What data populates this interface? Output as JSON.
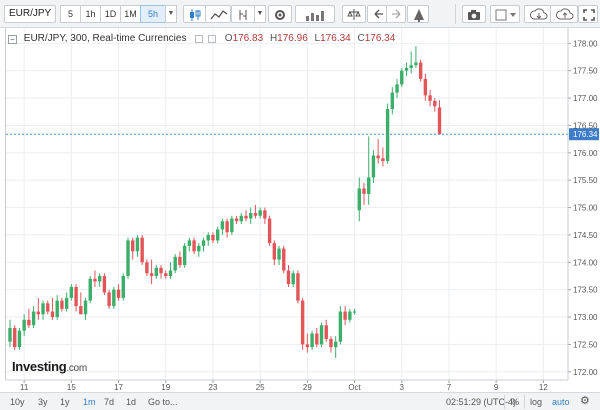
{
  "toolbar": {
    "symbol": "EUR/JPY",
    "intervals": [
      "5",
      "1h",
      "1D",
      "1M",
      "5h"
    ],
    "active_interval": "5h",
    "icons": [
      "candles-icon",
      "indicators-icon",
      "fx-icon",
      "settings-icon",
      "compare-icon",
      "balance-icon",
      "undo-icon",
      "redo-icon",
      "alert-icon",
      "camera-icon",
      "color-icon",
      "cloud-download-icon",
      "cloud-upload-icon",
      "fullscreen-icon"
    ]
  },
  "legend": {
    "title": "EUR/JPY, 300, Real-time Currencies",
    "o_label": "O",
    "o_value": "176.83",
    "h_label": "H",
    "h_value": "176.96",
    "l_label": "L",
    "l_value": "176.34",
    "c_label": "C",
    "c_value": "176.34"
  },
  "brand": {
    "name": "Investing",
    "suffix": ".com"
  },
  "price_tag": "176.34",
  "bottombar": {
    "ranges": [
      "10y",
      "3y",
      "1y",
      "1m",
      "7d",
      "1d",
      "Go to..."
    ],
    "active_range": "1m",
    "time": "02:51:29 (UTC-4)",
    "pct": "%",
    "log": "log",
    "auto": "auto"
  },
  "colors": {
    "up": "#3bae6a",
    "down": "#e2565a",
    "grid": "#eceef1",
    "price_line": "#4a90d9"
  },
  "chart_data": {
    "type": "candlestick",
    "title": "EUR/JPY, 300, Real-time Currencies",
    "ylim": [
      171.85,
      178.28
    ],
    "y_ticks": [
      172.0,
      172.5,
      173.0,
      173.5,
      174.0,
      174.5,
      175.0,
      175.5,
      176.0,
      176.5,
      177.0,
      177.5,
      178.0
    ],
    "y_tick_labels": [
      "172.00",
      "172.50",
      "173.00",
      "173.50",
      "174.00",
      "174.50",
      "175.00",
      "175.50",
      "176.00",
      "176.50",
      "177.00",
      "177.50",
      "178.00"
    ],
    "x_ticks": [
      {
        "label": "11",
        "index": 3
      },
      {
        "label": "15",
        "index": 13
      },
      {
        "label": "17",
        "index": 23
      },
      {
        "label": "19",
        "index": 33
      },
      {
        "label": "23",
        "index": 43
      },
      {
        "label": "25",
        "index": 53
      },
      {
        "label": "29",
        "index": 63
      },
      {
        "label": "Oct",
        "index": 73
      },
      {
        "label": "3",
        "index": 83
      },
      {
        "label": "7",
        "index": 93
      },
      {
        "label": "9",
        "index": 103
      },
      {
        "label": "12",
        "index": 113
      }
    ],
    "last_price": 176.34,
    "candles": [
      {
        "o": 172.55,
        "h": 172.95,
        "l": 172.45,
        "c": 172.8
      },
      {
        "o": 172.8,
        "h": 172.85,
        "l": 172.4,
        "c": 172.45
      },
      {
        "o": 172.45,
        "h": 172.8,
        "l": 172.4,
        "c": 172.75
      },
      {
        "o": 172.75,
        "h": 173.05,
        "l": 172.65,
        "c": 172.95
      },
      {
        "o": 172.95,
        "h": 173.15,
        "l": 172.8,
        "c": 172.85
      },
      {
        "o": 172.85,
        "h": 173.2,
        "l": 172.8,
        "c": 173.1
      },
      {
        "o": 173.1,
        "h": 173.35,
        "l": 172.95,
        "c": 173.05
      },
      {
        "o": 173.05,
        "h": 173.3,
        "l": 172.95,
        "c": 173.25
      },
      {
        "o": 173.25,
        "h": 173.3,
        "l": 173.05,
        "c": 173.1
      },
      {
        "o": 173.1,
        "h": 173.35,
        "l": 172.95,
        "c": 173.0
      },
      {
        "o": 173.0,
        "h": 173.4,
        "l": 172.95,
        "c": 173.3
      },
      {
        "o": 173.3,
        "h": 173.35,
        "l": 173.1,
        "c": 173.15
      },
      {
        "o": 173.15,
        "h": 173.45,
        "l": 173.1,
        "c": 173.35
      },
      {
        "o": 173.35,
        "h": 173.6,
        "l": 173.3,
        "c": 173.55
      },
      {
        "o": 173.55,
        "h": 173.6,
        "l": 173.1,
        "c": 173.2
      },
      {
        "o": 173.2,
        "h": 173.45,
        "l": 173.05,
        "c": 173.05
      },
      {
        "o": 173.05,
        "h": 173.35,
        "l": 172.95,
        "c": 173.3
      },
      {
        "o": 173.3,
        "h": 173.75,
        "l": 173.25,
        "c": 173.7
      },
      {
        "o": 173.7,
        "h": 173.85,
        "l": 173.55,
        "c": 173.65
      },
      {
        "o": 173.65,
        "h": 173.8,
        "l": 173.55,
        "c": 173.75
      },
      {
        "o": 173.75,
        "h": 173.8,
        "l": 173.4,
        "c": 173.45
      },
      {
        "o": 173.45,
        "h": 173.5,
        "l": 173.15,
        "c": 173.2
      },
      {
        "o": 173.2,
        "h": 173.55,
        "l": 173.15,
        "c": 173.5
      },
      {
        "o": 173.5,
        "h": 173.6,
        "l": 173.3,
        "c": 173.35
      },
      {
        "o": 173.35,
        "h": 173.8,
        "l": 173.3,
        "c": 173.75
      },
      {
        "o": 173.75,
        "h": 174.45,
        "l": 173.7,
        "c": 174.4
      },
      {
        "o": 174.4,
        "h": 174.45,
        "l": 174.05,
        "c": 174.2
      },
      {
        "o": 174.2,
        "h": 174.5,
        "l": 174.1,
        "c": 174.45
      },
      {
        "o": 174.45,
        "h": 174.5,
        "l": 173.95,
        "c": 174.0
      },
      {
        "o": 174.0,
        "h": 174.05,
        "l": 173.75,
        "c": 173.8
      },
      {
        "o": 173.8,
        "h": 174.05,
        "l": 173.6,
        "c": 173.75
      },
      {
        "o": 173.75,
        "h": 173.95,
        "l": 173.7,
        "c": 173.9
      },
      {
        "o": 173.9,
        "h": 173.95,
        "l": 173.7,
        "c": 173.8
      },
      {
        "o": 173.8,
        "h": 173.85,
        "l": 173.7,
        "c": 173.75
      },
      {
        "o": 173.75,
        "h": 174.0,
        "l": 173.7,
        "c": 173.85
      },
      {
        "o": 173.85,
        "h": 174.15,
        "l": 173.8,
        "c": 174.1
      },
      {
        "o": 174.1,
        "h": 174.2,
        "l": 173.9,
        "c": 173.95
      },
      {
        "o": 173.95,
        "h": 174.35,
        "l": 173.9,
        "c": 174.3
      },
      {
        "o": 174.3,
        "h": 174.45,
        "l": 174.2,
        "c": 174.4
      },
      {
        "o": 174.4,
        "h": 174.45,
        "l": 174.15,
        "c": 174.2
      },
      {
        "o": 174.2,
        "h": 174.35,
        "l": 174.1,
        "c": 174.3
      },
      {
        "o": 174.3,
        "h": 174.45,
        "l": 174.2,
        "c": 174.4
      },
      {
        "o": 174.4,
        "h": 174.55,
        "l": 174.3,
        "c": 174.5
      },
      {
        "o": 174.5,
        "h": 174.55,
        "l": 174.35,
        "c": 174.4
      },
      {
        "o": 174.4,
        "h": 174.65,
        "l": 174.35,
        "c": 174.6
      },
      {
        "o": 174.6,
        "h": 174.8,
        "l": 174.5,
        "c": 174.75
      },
      {
        "o": 174.75,
        "h": 174.8,
        "l": 174.45,
        "c": 174.55
      },
      {
        "o": 174.55,
        "h": 174.85,
        "l": 174.5,
        "c": 174.8
      },
      {
        "o": 174.8,
        "h": 174.85,
        "l": 174.7,
        "c": 174.75
      },
      {
        "o": 174.75,
        "h": 174.9,
        "l": 174.7,
        "c": 174.85
      },
      {
        "o": 174.85,
        "h": 174.95,
        "l": 174.75,
        "c": 174.8
      },
      {
        "o": 174.8,
        "h": 175.0,
        "l": 174.7,
        "c": 174.9
      },
      {
        "o": 174.9,
        "h": 175.05,
        "l": 174.8,
        "c": 174.85
      },
      {
        "o": 174.85,
        "h": 175.0,
        "l": 174.8,
        "c": 174.95
      },
      {
        "o": 174.95,
        "h": 175.0,
        "l": 174.7,
        "c": 174.8
      },
      {
        "o": 174.8,
        "h": 174.85,
        "l": 174.3,
        "c": 174.35
      },
      {
        "o": 174.35,
        "h": 174.4,
        "l": 173.95,
        "c": 174.05
      },
      {
        "o": 174.05,
        "h": 174.3,
        "l": 173.95,
        "c": 174.25
      },
      {
        "o": 174.25,
        "h": 174.3,
        "l": 173.8,
        "c": 173.85
      },
      {
        "o": 173.85,
        "h": 173.95,
        "l": 173.55,
        "c": 173.6
      },
      {
        "o": 173.6,
        "h": 173.85,
        "l": 173.55,
        "c": 173.8
      },
      {
        "o": 173.8,
        "h": 173.85,
        "l": 173.25,
        "c": 173.3
      },
      {
        "o": 173.3,
        "h": 173.35,
        "l": 172.4,
        "c": 172.5
      },
      {
        "o": 172.5,
        "h": 172.7,
        "l": 172.35,
        "c": 172.45
      },
      {
        "o": 172.45,
        "h": 172.75,
        "l": 172.4,
        "c": 172.7
      },
      {
        "o": 172.7,
        "h": 172.8,
        "l": 172.45,
        "c": 172.5
      },
      {
        "o": 172.5,
        "h": 172.9,
        "l": 172.45,
        "c": 172.85
      },
      {
        "o": 172.85,
        "h": 172.95,
        "l": 172.55,
        "c": 172.6
      },
      {
        "o": 172.6,
        "h": 172.65,
        "l": 172.35,
        "c": 172.45
      },
      {
        "o": 172.45,
        "h": 172.65,
        "l": 172.25,
        "c": 172.55
      },
      {
        "o": 172.55,
        "h": 173.2,
        "l": 172.5,
        "c": 173.1
      },
      {
        "o": 173.1,
        "h": 173.2,
        "l": 172.85,
        "c": 172.95
      },
      {
        "o": 172.95,
        "h": 173.15,
        "l": 172.9,
        "c": 173.1
      },
      {
        "o": 173.1,
        "h": 173.15,
        "l": 173.05,
        "c": 173.1
      },
      {
        "o": 174.95,
        "h": 175.55,
        "l": 174.75,
        "c": 175.35
      },
      {
        "o": 175.35,
        "h": 175.45,
        "l": 175.05,
        "c": 175.25
      },
      {
        "o": 175.25,
        "h": 176.3,
        "l": 175.05,
        "c": 175.55
      },
      {
        "o": 175.55,
        "h": 176.05,
        "l": 175.45,
        "c": 175.95
      },
      {
        "o": 175.95,
        "h": 176.25,
        "l": 175.8,
        "c": 175.9
      },
      {
        "o": 175.9,
        "h": 176.1,
        "l": 175.75,
        "c": 175.85
      },
      {
        "o": 175.85,
        "h": 176.9,
        "l": 175.8,
        "c": 176.8
      },
      {
        "o": 176.8,
        "h": 177.2,
        "l": 176.7,
        "c": 177.1
      },
      {
        "o": 177.1,
        "h": 177.35,
        "l": 177.0,
        "c": 177.25
      },
      {
        "o": 177.25,
        "h": 177.55,
        "l": 177.2,
        "c": 177.5
      },
      {
        "o": 177.5,
        "h": 177.65,
        "l": 177.4,
        "c": 177.55
      },
      {
        "o": 177.55,
        "h": 177.85,
        "l": 177.45,
        "c": 177.6
      },
      {
        "o": 177.6,
        "h": 177.95,
        "l": 177.55,
        "c": 177.65
      },
      {
        "o": 177.65,
        "h": 177.7,
        "l": 177.3,
        "c": 177.35
      },
      {
        "o": 177.35,
        "h": 177.45,
        "l": 176.95,
        "c": 177.05
      },
      {
        "o": 177.05,
        "h": 177.15,
        "l": 176.85,
        "c": 176.95
      },
      {
        "o": 176.95,
        "h": 177.0,
        "l": 176.75,
        "c": 176.85
      },
      {
        "o": 176.83,
        "h": 176.96,
        "l": 176.34,
        "c": 176.34
      }
    ]
  }
}
